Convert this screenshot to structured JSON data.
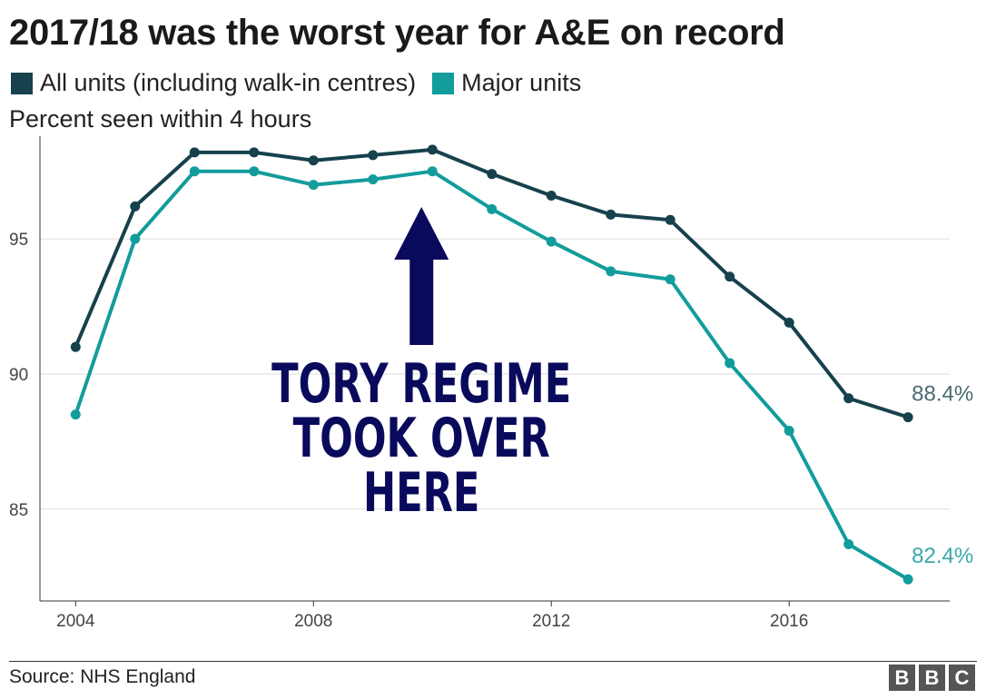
{
  "header": {
    "title": "2017/18 was the worst year for A&E on record",
    "ylabel": "Percent seen within 4 hours"
  },
  "legend": {
    "items": [
      {
        "label": "All units (including walk-in centres)",
        "color": "#16414d"
      },
      {
        "label": "Major units",
        "color": "#139c9c"
      }
    ]
  },
  "annotation": {
    "lines": [
      "TORY REGIME",
      "TOOK OVER",
      "HERE"
    ],
    "color": "#0a0a5c",
    "arrow_target_x": 2010
  },
  "footer": {
    "source": "Source: NHS England",
    "logo_letters": [
      "B",
      "B",
      "C"
    ]
  },
  "chart_data": {
    "type": "line",
    "x": [
      2004,
      2005,
      2006,
      2007,
      2008,
      2009,
      2010,
      2011,
      2012,
      2013,
      2014,
      2015,
      2016,
      2017,
      2018
    ],
    "series": [
      {
        "name": "All units (including walk-in centres)",
        "color": "#16414d",
        "values": [
          91.0,
          96.2,
          98.2,
          98.2,
          97.9,
          98.1,
          98.3,
          97.4,
          96.6,
          95.9,
          95.7,
          93.6,
          91.9,
          89.1,
          88.4
        ],
        "end_label": "88.4%"
      },
      {
        "name": "Major units",
        "color": "#139c9c",
        "values": [
          88.5,
          95.0,
          97.5,
          97.5,
          97.0,
          97.2,
          97.5,
          96.1,
          94.9,
          93.8,
          93.5,
          90.4,
          87.9,
          83.7,
          82.4
        ],
        "end_label": "82.4%"
      }
    ],
    "xticks": [
      "2004",
      "2008",
      "2012",
      "2016"
    ],
    "xtick_values": [
      2004,
      2008,
      2012,
      2016
    ],
    "yticks": [
      "85",
      "90",
      "95"
    ],
    "ytick_values": [
      85,
      90,
      95
    ],
    "xlim": [
      2003.4,
      2018.7
    ],
    "ylim": [
      81.6,
      98.8
    ],
    "grid": true
  }
}
